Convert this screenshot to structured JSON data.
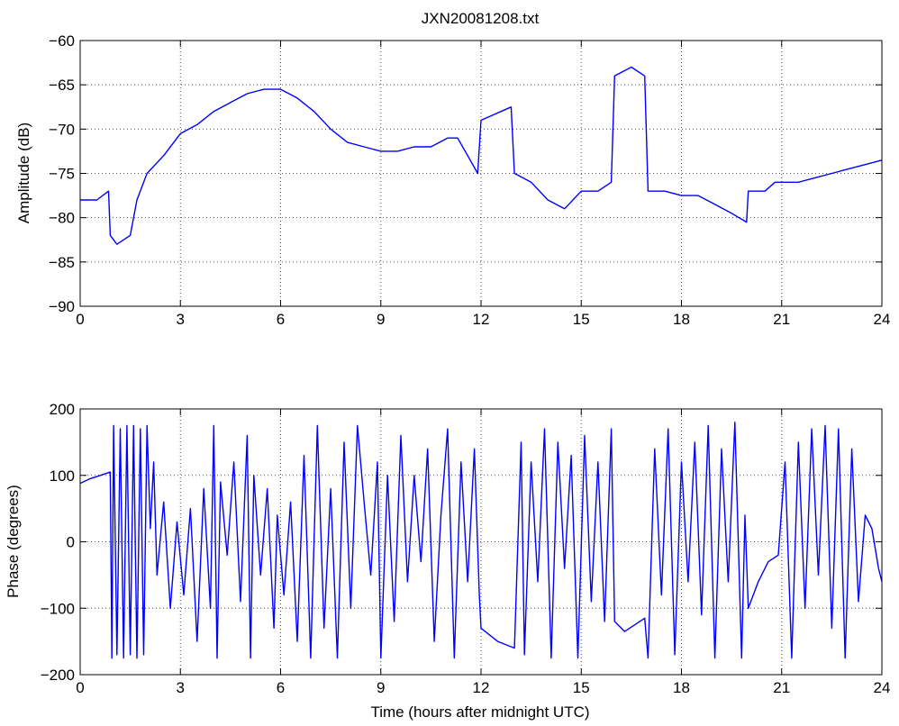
{
  "figure": {
    "background": "#ffffff",
    "line_color": "#0000ff"
  },
  "chart_data": [
    {
      "type": "line",
      "title": "JXN20081208.txt",
      "xlabel": "",
      "ylabel": "Amplitude (dB)",
      "xlim": [
        0,
        24
      ],
      "ylim": [
        -90,
        -60
      ],
      "xticks": [
        "0",
        "3",
        "6",
        "9",
        "12",
        "15",
        "18",
        "21",
        "24"
      ],
      "yticks": [
        "-60",
        "-65",
        "-70",
        "-75",
        "-80",
        "-85",
        "-90"
      ],
      "grid": true,
      "series": [
        {
          "color": "#0000ff",
          "x": [
            0,
            0.5,
            0.85,
            0.9,
            1.1,
            1.5,
            1.7,
            2.0,
            2.5,
            3.0,
            3.5,
            4.0,
            4.5,
            5.0,
            5.5,
            6.0,
            6.5,
            7.0,
            7.5,
            8.0,
            8.5,
            9.0,
            9.5,
            10.0,
            10.5,
            11.0,
            11.3,
            11.6,
            11.9,
            12.0,
            12.3,
            12.6,
            12.9,
            13.0,
            13.5,
            14.0,
            14.5,
            15.0,
            15.5,
            15.9,
            16.0,
            16.5,
            16.9,
            17.0,
            17.5,
            18.0,
            18.5,
            19.0,
            19.5,
            19.95,
            20.0,
            20.5,
            20.8,
            21.0,
            21.5,
            22.0,
            22.5,
            23.0,
            23.5,
            24.0
          ],
          "y": [
            -78,
            -78,
            -77,
            -82,
            -83,
            -82,
            -78,
            -75,
            -73,
            -70.5,
            -69.5,
            -68,
            -67,
            -66,
            -65.5,
            -65.5,
            -66.5,
            -68,
            -70,
            -71.5,
            -72,
            -72.5,
            -72.5,
            -72,
            -72,
            -71,
            -71,
            -73,
            -75,
            -69,
            -68.5,
            -68,
            -67.5,
            -75,
            -76,
            -78,
            -79,
            -77,
            -77,
            -76,
            -64,
            -63,
            -64,
            -77,
            -77,
            -77.5,
            -77.5,
            -78.5,
            -79.5,
            -80.5,
            -77,
            -77,
            -76,
            -76,
            -76,
            -75.5,
            -75,
            -74.5,
            -74,
            -73.5
          ]
        }
      ]
    },
    {
      "type": "line",
      "title": "",
      "xlabel": "Time (hours after midnight UTC)",
      "ylabel": "Phase (degrees)",
      "xlim": [
        0,
        24
      ],
      "ylim": [
        -200,
        200
      ],
      "xticks": [
        "0",
        "3",
        "6",
        "9",
        "12",
        "15",
        "18",
        "21",
        "24"
      ],
      "yticks": [
        "200",
        "100",
        "0",
        "-100",
        "-200"
      ],
      "grid": true,
      "series": [
        {
          "color": "#0000ff",
          "x": [
            0,
            0.3,
            0.6,
            0.9,
            0.95,
            1.0,
            1.1,
            1.2,
            1.3,
            1.4,
            1.5,
            1.6,
            1.7,
            1.8,
            1.9,
            2.0,
            2.1,
            2.2,
            2.3,
            2.5,
            2.7,
            2.9,
            3.1,
            3.3,
            3.5,
            3.7,
            3.9,
            4.0,
            4.1,
            4.2,
            4.4,
            4.6,
            4.8,
            5.0,
            5.1,
            5.2,
            5.4,
            5.6,
            5.8,
            5.9,
            6.1,
            6.3,
            6.5,
            6.7,
            6.9,
            7.1,
            7.3,
            7.5,
            7.7,
            7.9,
            8.1,
            8.3,
            8.5,
            8.7,
            8.9,
            9.0,
            9.2,
            9.4,
            9.6,
            9.8,
            10.0,
            10.2,
            10.4,
            10.6,
            10.8,
            11.0,
            11.2,
            11.4,
            11.6,
            11.8,
            11.95,
            12.0,
            12.5,
            13.0,
            13.2,
            13.3,
            13.5,
            13.7,
            13.9,
            14.1,
            14.3,
            14.5,
            14.7,
            14.9,
            15.1,
            15.3,
            15.5,
            15.7,
            15.9,
            16.0,
            16.3,
            16.6,
            16.9,
            17.0,
            17.2,
            17.4,
            17.6,
            17.8,
            18.0,
            18.2,
            18.4,
            18.6,
            18.8,
            19.0,
            19.2,
            19.4,
            19.6,
            19.8,
            19.9,
            20.0,
            20.3,
            20.6,
            20.9,
            21.1,
            21.3,
            21.5,
            21.7,
            21.9,
            22.1,
            22.3,
            22.5,
            22.7,
            22.9,
            23.1,
            23.3,
            23.5,
            23.7,
            23.9,
            24.0
          ],
          "y": [
            88,
            95,
            100,
            105,
            -175,
            175,
            -170,
            170,
            -175,
            175,
            -170,
            175,
            -175,
            170,
            -170,
            175,
            20,
            120,
            -50,
            60,
            -100,
            30,
            -80,
            50,
            -150,
            80,
            -100,
            175,
            -175,
            90,
            -20,
            120,
            -90,
            160,
            -175,
            100,
            -50,
            80,
            -130,
            40,
            -80,
            60,
            -150,
            130,
            -175,
            175,
            -130,
            80,
            -175,
            150,
            -100,
            175,
            60,
            -50,
            120,
            -175,
            100,
            -120,
            160,
            -60,
            100,
            -30,
            140,
            -150,
            40,
            170,
            -175,
            120,
            -60,
            140,
            -80,
            -130,
            -150,
            -160,
            150,
            -170,
            120,
            -60,
            170,
            -175,
            150,
            -40,
            130,
            -175,
            160,
            -90,
            120,
            -120,
            170,
            -120,
            -135,
            -125,
            -115,
            -175,
            140,
            -80,
            170,
            -170,
            120,
            -60,
            150,
            -110,
            175,
            -175,
            140,
            -60,
            180,
            -175,
            40,
            -100,
            -60,
            -30,
            -20,
            120,
            -175,
            150,
            -100,
            170,
            -50,
            175,
            -130,
            170,
            -175,
            140,
            -90,
            40,
            20,
            -40,
            -60
          ]
        }
      ]
    }
  ]
}
